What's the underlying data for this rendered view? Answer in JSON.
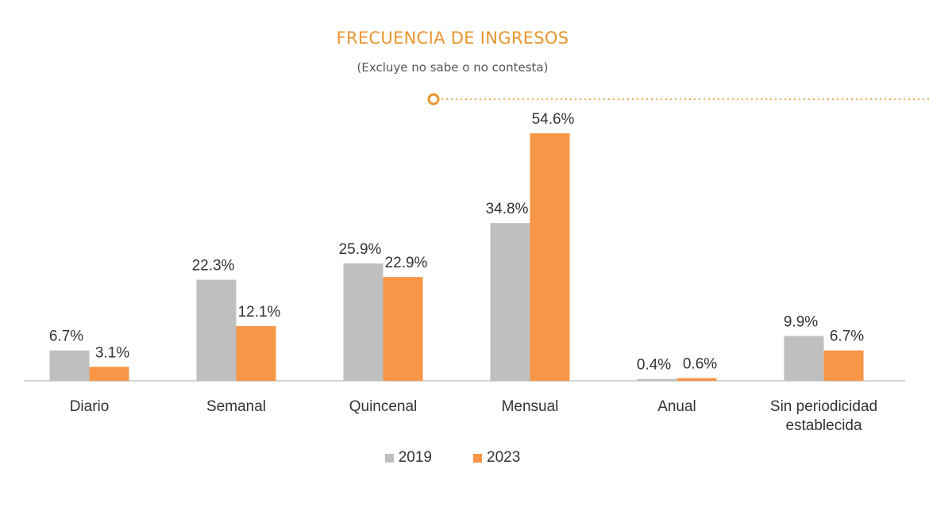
{
  "colors": {
    "accent": "#E8952E",
    "series_2019": "#BFBFBF",
    "series_2023": "#F79646",
    "axis": "#BFBFBF",
    "text": "#333333"
  },
  "chart_data": {
    "type": "bar",
    "title": "FRECUENCIA DE INGRESOS",
    "subtitle": "(Excluye no sabe o no contesta)",
    "categories": [
      [
        "Diario"
      ],
      [
        "Semanal"
      ],
      [
        "Quincenal"
      ],
      [
        "Mensual"
      ],
      [
        "Anual"
      ],
      [
        "Sin periodicidad",
        "establecida"
      ]
    ],
    "series": [
      {
        "name": "2019",
        "values": [
          6.7,
          22.3,
          25.9,
          34.8,
          0.4,
          9.9
        ],
        "labels": [
          "6.7%",
          "22.3%",
          "25.9%",
          "34.8%",
          "0.4%",
          "9.9%"
        ]
      },
      {
        "name": "2023",
        "values": [
          3.1,
          12.1,
          22.9,
          54.6,
          0.6,
          6.7
        ],
        "labels": [
          "3.1%",
          "12.1%",
          "22.9%",
          "54.6%",
          "0.6%",
          "6.7%"
        ]
      }
    ],
    "ylim": [
      0,
      56
    ],
    "grid": false,
    "legend_position": "bottom"
  }
}
